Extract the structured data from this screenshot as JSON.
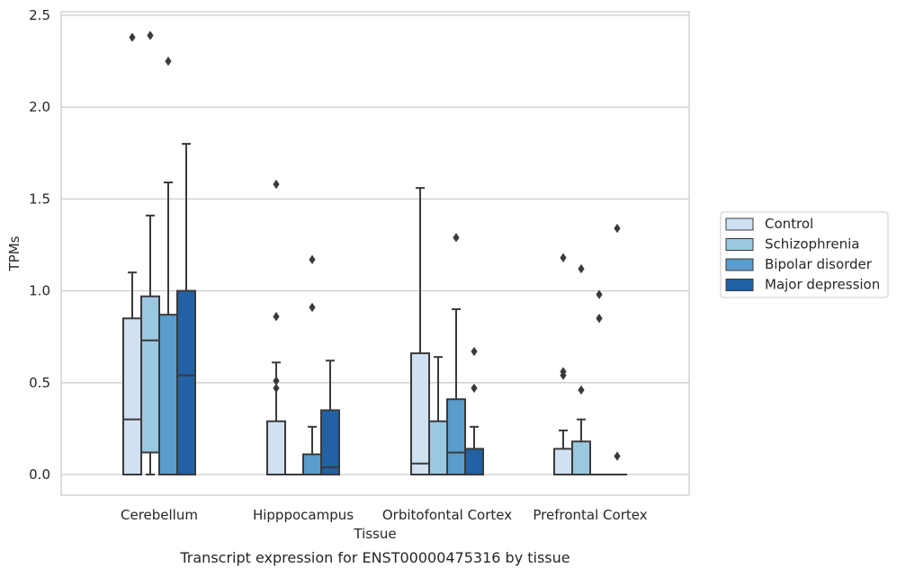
{
  "chart_data": {
    "type": "box",
    "title": "",
    "caption": "Transcript expression for ENST00000475316 by tissue",
    "xlabel": "Tissue",
    "ylabel": "TPMs",
    "ylim": [
      -0.11,
      2.52
    ],
    "yticks": [
      "0.0",
      "0.5",
      "1.0",
      "1.5",
      "2.0",
      "2.5"
    ],
    "ytick_values": [
      0,
      0.5,
      1.0,
      1.5,
      2.0,
      2.5
    ],
    "grid": true,
    "legend_position": "right",
    "categories": [
      "Cerebellum",
      "Hipppocampus",
      "Orbitofontal Cortex",
      "Prefrontal Cortex"
    ],
    "series": [
      {
        "name": "Control",
        "color": "#d0e1f2",
        "boxes": [
          {
            "whisker_low": 0,
            "q1": 0,
            "median": 0.3,
            "q3": 0.85,
            "whisker_high": 1.1,
            "outliers": [
              2.38
            ]
          },
          {
            "whisker_low": 0,
            "q1": 0,
            "median": 0,
            "q3": 0.29,
            "whisker_high": 0.61,
            "outliers": [
              1.58,
              0.86,
              0.51,
              0.47
            ]
          },
          {
            "whisker_low": 0,
            "q1": 0,
            "median": 0.06,
            "q3": 0.66,
            "whisker_high": 1.56,
            "outliers": []
          },
          {
            "whisker_low": 0,
            "q1": 0,
            "median": 0,
            "q3": 0.14,
            "whisker_high": 0.24,
            "outliers": [
              1.18,
              0.56,
              0.54
            ]
          }
        ]
      },
      {
        "name": "Schizophrenia",
        "color": "#9ac8e0",
        "boxes": [
          {
            "whisker_low": 0,
            "q1": 0.12,
            "median": 0.73,
            "q3": 0.97,
            "whisker_high": 1.41,
            "outliers": [
              2.39
            ]
          },
          {
            "whisker_low": 0,
            "q1": 0,
            "median": 0,
            "q3": 0,
            "whisker_high": 0,
            "outliers": []
          },
          {
            "whisker_low": 0,
            "q1": 0,
            "median": 0,
            "q3": 0.29,
            "whisker_high": 0.64,
            "outliers": []
          },
          {
            "whisker_low": 0,
            "q1": 0,
            "median": 0,
            "q3": 0.18,
            "whisker_high": 0.3,
            "outliers": [
              1.12,
              0.46
            ]
          }
        ]
      },
      {
        "name": "Bipolar disorder",
        "color": "#5a9ccb",
        "boxes": [
          {
            "whisker_low": 0,
            "q1": 0,
            "median": 0,
            "q3": 0.87,
            "whisker_high": 1.59,
            "outliers": [
              2.25
            ]
          },
          {
            "whisker_low": 0,
            "q1": 0,
            "median": 0,
            "q3": 0.11,
            "whisker_high": 0.26,
            "outliers": [
              1.17,
              0.91
            ]
          },
          {
            "whisker_low": 0,
            "q1": 0,
            "median": 0.12,
            "q3": 0.41,
            "whisker_high": 0.9,
            "outliers": [
              1.29
            ]
          },
          {
            "whisker_low": 0,
            "q1": 0,
            "median": 0,
            "q3": 0,
            "whisker_high": 0,
            "outliers": [
              0.98,
              0.85
            ]
          }
        ]
      },
      {
        "name": "Major depression",
        "color": "#2261a3",
        "boxes": [
          {
            "whisker_low": 0,
            "q1": 0,
            "median": 0.54,
            "q3": 1.0,
            "whisker_high": 1.8,
            "outliers": []
          },
          {
            "whisker_low": 0,
            "q1": 0,
            "median": 0.04,
            "q3": 0.35,
            "whisker_high": 0.62,
            "outliers": []
          },
          {
            "whisker_low": 0,
            "q1": 0,
            "median": 0,
            "q3": 0.14,
            "whisker_high": 0.26,
            "outliers": [
              0.67,
              0.47
            ]
          },
          {
            "whisker_low": 0,
            "q1": 0,
            "median": 0,
            "q3": 0,
            "whisker_high": 0,
            "outliers": [
              1.34,
              0.1
            ]
          }
        ]
      }
    ]
  }
}
